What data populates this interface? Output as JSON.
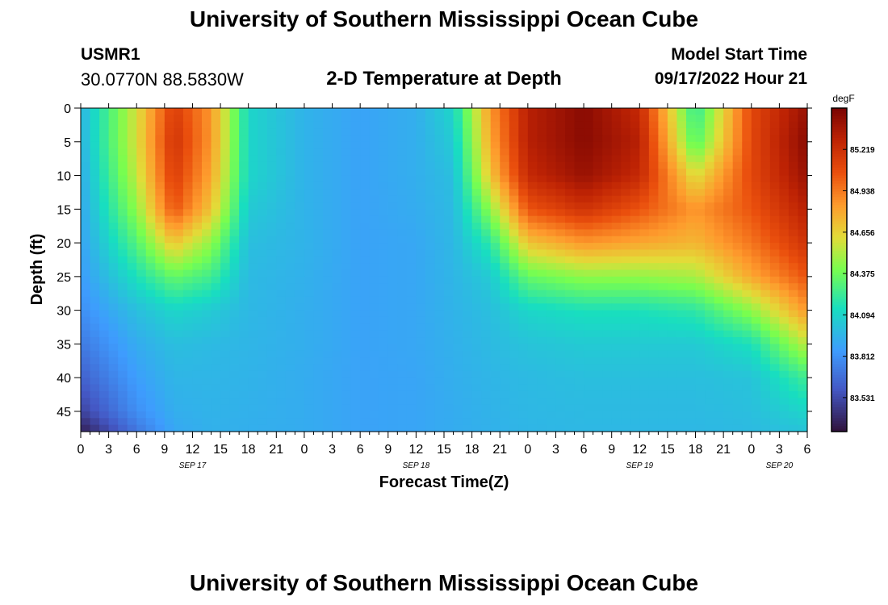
{
  "header": {
    "title": "University of Southern Mississippi Ocean Cube",
    "station_name": "USMR1",
    "station_coords": "30.0770N  88.5830W",
    "subtitle": "2-D Temperature at Depth",
    "model_label": "Model Start Time",
    "model_time": "09/17/2022 Hour 21"
  },
  "footer": {
    "title": "University of Southern Mississippi Ocean Cube"
  },
  "chart_data": {
    "type": "heatmap",
    "title": "2-D Temperature at Depth",
    "xlabel": "Forecast Time(Z)",
    "ylabel": "Depth (ft)",
    "x_unit": "hours since SEP 17 00Z",
    "xlim": [
      0,
      78
    ],
    "ylim": [
      0,
      48
    ],
    "y_inverted": true,
    "x_ticks": [
      0,
      3,
      6,
      9,
      12,
      15,
      18,
      21,
      24,
      27,
      30,
      33,
      36,
      39,
      42,
      45,
      48,
      51,
      54,
      57,
      60,
      63,
      66,
      69,
      72,
      75,
      78
    ],
    "x_tick_labels": [
      "0",
      "3",
      "6",
      "9",
      "12",
      "15",
      "18",
      "21",
      "0",
      "3",
      "6",
      "9",
      "12",
      "15",
      "18",
      "21",
      "0",
      "3",
      "6",
      "9",
      "12",
      "15",
      "18",
      "21",
      "0",
      "3",
      "6"
    ],
    "date_labels": [
      {
        "label": "SEP 17",
        "x": 12
      },
      {
        "label": "SEP 18",
        "x": 36
      },
      {
        "label": "SEP 19",
        "x": 60
      },
      {
        "label": "SEP 20",
        "x": 75
      }
    ],
    "y_ticks": [
      0,
      5,
      10,
      15,
      20,
      25,
      30,
      35,
      40,
      45
    ],
    "y_tick_labels": [
      "0",
      "5",
      "10",
      "15",
      "20",
      "25",
      "30",
      "35",
      "40",
      "45"
    ],
    "colorbar": {
      "unit": "degF",
      "range": [
        83.3,
        85.5
      ],
      "ticks": [
        83.531,
        83.812,
        84.094,
        84.375,
        84.656,
        84.938,
        85.219
      ],
      "tick_labels": [
        "83.531",
        "83.812",
        "84.094",
        "84.375",
        "84.656",
        "84.938",
        "85.219"
      ]
    },
    "grid_x_hours": [
      0,
      6,
      10,
      14,
      18,
      24,
      30,
      36,
      40,
      44,
      48,
      54,
      60,
      66,
      72,
      78
    ],
    "grid_depth_ft": [
      0,
      5,
      10,
      15,
      20,
      25,
      30,
      35,
      40,
      45,
      48
    ],
    "temperature_degF": [
      [
        83.95,
        84.6,
        85.15,
        84.85,
        84.1,
        83.95,
        83.88,
        83.93,
        84.1,
        84.85,
        85.3,
        85.45,
        85.25,
        84.2,
        85.1,
        85.4
      ],
      [
        83.95,
        84.6,
        85.2,
        84.85,
        84.1,
        83.95,
        83.88,
        83.93,
        84.05,
        84.8,
        85.3,
        85.45,
        85.3,
        84.3,
        85.1,
        85.45
      ],
      [
        83.92,
        84.55,
        85.15,
        84.8,
        84.1,
        83.95,
        83.88,
        83.93,
        84.0,
        84.7,
        85.25,
        85.4,
        85.25,
        84.6,
        85.1,
        85.4
      ],
      [
        83.9,
        84.45,
        85.05,
        84.7,
        84.05,
        83.95,
        83.88,
        83.92,
        83.98,
        84.45,
        85.05,
        85.2,
        85.05,
        84.85,
        85.05,
        85.3
      ],
      [
        83.88,
        84.3,
        84.7,
        84.45,
        84.0,
        83.95,
        83.88,
        83.9,
        83.97,
        84.2,
        84.7,
        84.85,
        84.8,
        84.75,
        84.95,
        85.2
      ],
      [
        83.85,
        84.15,
        84.35,
        84.25,
        83.98,
        83.94,
        83.88,
        83.9,
        83.96,
        84.05,
        84.35,
        84.45,
        84.45,
        84.5,
        84.8,
        85.05
      ],
      [
        83.8,
        84.0,
        84.1,
        84.05,
        83.97,
        83.93,
        83.88,
        83.9,
        83.95,
        84.0,
        84.1,
        84.15,
        84.15,
        84.2,
        84.45,
        84.85
      ],
      [
        83.72,
        83.92,
        84.0,
        83.98,
        83.96,
        83.93,
        83.88,
        83.9,
        83.94,
        83.98,
        84.02,
        84.05,
        84.05,
        84.05,
        84.15,
        84.55
      ],
      [
        83.62,
        83.86,
        83.96,
        83.96,
        83.95,
        83.92,
        83.88,
        83.89,
        83.93,
        83.96,
        83.98,
        84.0,
        84.0,
        84.0,
        84.02,
        84.25
      ],
      [
        83.5,
        83.8,
        83.93,
        83.95,
        83.94,
        83.92,
        83.88,
        83.89,
        83.92,
        83.95,
        83.97,
        83.98,
        83.98,
        83.98,
        84.0,
        84.1
      ],
      [
        83.35,
        83.7,
        83.9,
        83.94,
        83.93,
        83.92,
        83.88,
        83.89,
        83.92,
        83.94,
        83.96,
        83.97,
        83.97,
        83.97,
        83.98,
        84.02
      ]
    ]
  }
}
